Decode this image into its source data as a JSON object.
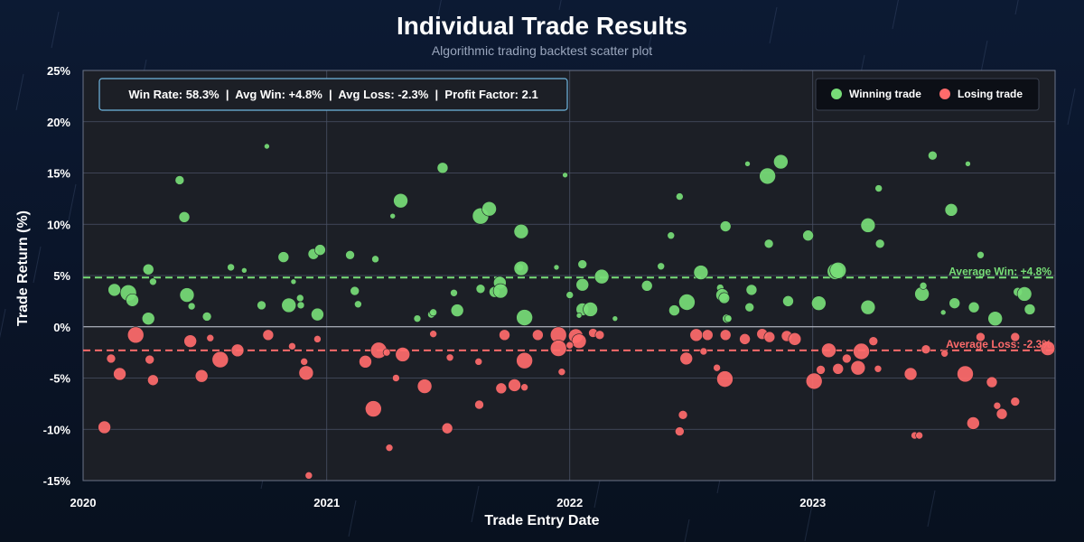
{
  "colors": {
    "win": "#77dd77",
    "loss": "#ff6b6b",
    "plot_bg": "#1c1f26",
    "grid": "#4a5266",
    "stats_border": "#6fb6e0"
  },
  "chart_data": {
    "type": "scatter",
    "title": "Individual Trade Results",
    "subtitle": "Algorithmic trading backtest scatter plot",
    "xlabel": "Trade Entry Date",
    "ylabel": "Trade Return (%)",
    "xlim": [
      "2020-01-01",
      "2023-12-31"
    ],
    "ylim": [
      -15,
      25
    ],
    "x_ticks": [
      "2020",
      "2021",
      "2022",
      "2023"
    ],
    "y_ticks": [
      "25%",
      "20%",
      "15%",
      "10%",
      "5%",
      "0%",
      "-5%",
      "-10%",
      "-15%"
    ],
    "grid": true,
    "legend": {
      "placement": "top-right",
      "entries": [
        "Winning trade",
        "Losing trade"
      ]
    },
    "stats_box": "Win Rate: 58.3%  |  Avg Win: +4.8%  |  Avg Loss: -2.3%  |  Profit Factor: 2.1",
    "avg_win": {
      "value": 4.8,
      "label": "Average Win: +4.8%"
    },
    "avg_loss": {
      "value": -2.3,
      "label": "Average Loss: -2.3%"
    },
    "series": [
      {
        "name": "Winning trade",
        "points": [
          {
            "x": "2020-02-17",
            "y": 3.6,
            "s": 7
          },
          {
            "x": "2020-03-09",
            "y": 3.3,
            "s": 9
          },
          {
            "x": "2020-03-15",
            "y": 2.6,
            "s": 7
          },
          {
            "x": "2020-04-08",
            "y": 5.6,
            "s": 6
          },
          {
            "x": "2020-04-08",
            "y": 0.8,
            "s": 7
          },
          {
            "x": "2020-04-15",
            "y": 4.4,
            "s": 4
          },
          {
            "x": "2020-05-25",
            "y": 14.3,
            "s": 5
          },
          {
            "x": "2020-06-01",
            "y": 10.7,
            "s": 6
          },
          {
            "x": "2020-06-05",
            "y": 3.1,
            "s": 8
          },
          {
            "x": "2020-06-12",
            "y": 2.0,
            "s": 4
          },
          {
            "x": "2020-07-05",
            "y": 1.0,
            "s": 5
          },
          {
            "x": "2020-08-10",
            "y": 5.8,
            "s": 4
          },
          {
            "x": "2020-08-30",
            "y": 5.5,
            "s": 3
          },
          {
            "x": "2020-09-25",
            "y": 2.1,
            "s": 5
          },
          {
            "x": "2020-10-03",
            "y": 17.6,
            "s": 3
          },
          {
            "x": "2020-10-28",
            "y": 6.8,
            "s": 6
          },
          {
            "x": "2020-11-05",
            "y": 2.1,
            "s": 8
          },
          {
            "x": "2020-11-12",
            "y": 4.4,
            "s": 3
          },
          {
            "x": "2020-11-22",
            "y": 2.8,
            "s": 4
          },
          {
            "x": "2020-11-23",
            "y": 2.1,
            "s": 4
          },
          {
            "x": "2020-12-12",
            "y": 7.1,
            "s": 6
          },
          {
            "x": "2020-12-22",
            "y": 7.5,
            "s": 6
          },
          {
            "x": "2020-12-18",
            "y": 1.2,
            "s": 7
          },
          {
            "x": "2021-02-05",
            "y": 7.0,
            "s": 5
          },
          {
            "x": "2021-02-12",
            "y": 3.5,
            "s": 5
          },
          {
            "x": "2021-02-17",
            "y": 2.2,
            "s": 4
          },
          {
            "x": "2021-03-15",
            "y": 6.6,
            "s": 4
          },
          {
            "x": "2021-04-10",
            "y": 10.8,
            "s": 3
          },
          {
            "x": "2021-04-22",
            "y": 12.3,
            "s": 8
          },
          {
            "x": "2021-05-17",
            "y": 0.8,
            "s": 4
          },
          {
            "x": "2021-06-07",
            "y": 1.2,
            "s": 4
          },
          {
            "x": "2021-06-10",
            "y": 1.4,
            "s": 4
          },
          {
            "x": "2021-06-24",
            "y": 15.5,
            "s": 6
          },
          {
            "x": "2021-07-11",
            "y": 3.3,
            "s": 4
          },
          {
            "x": "2021-07-16",
            "y": 1.6,
            "s": 7
          },
          {
            "x": "2021-08-20",
            "y": 3.7,
            "s": 5
          },
          {
            "x": "2021-08-20",
            "y": 10.8,
            "s": 9
          },
          {
            "x": "2021-09-02",
            "y": 11.5,
            "s": 8
          },
          {
            "x": "2021-09-10",
            "y": 3.4,
            "s": 6
          },
          {
            "x": "2021-09-18",
            "y": 4.3,
            "s": 7
          },
          {
            "x": "2021-09-19",
            "y": 3.5,
            "s": 8
          },
          {
            "x": "2021-10-18",
            "y": 5.8,
            "s": 4
          },
          {
            "x": "2021-10-20",
            "y": 5.7,
            "s": 8
          },
          {
            "x": "2021-10-20",
            "y": 9.3,
            "s": 8
          },
          {
            "x": "2021-10-25",
            "y": 0.9,
            "s": 9
          },
          {
            "x": "2021-12-12",
            "y": 5.8,
            "s": 3
          },
          {
            "x": "2021-12-25",
            "y": 14.8,
            "s": 3
          },
          {
            "x": "2022-01-01",
            "y": 3.1,
            "s": 4
          },
          {
            "x": "2022-01-20",
            "y": 6.1,
            "s": 5
          },
          {
            "x": "2022-01-20",
            "y": 1.7,
            "s": 7
          },
          {
            "x": "2022-01-20",
            "y": 4.1,
            "s": 7
          },
          {
            "x": "2022-01-15",
            "y": 1.1,
            "s": 3
          },
          {
            "x": "2022-02-01",
            "y": 1.7,
            "s": 8
          },
          {
            "x": "2022-02-18",
            "y": 4.9,
            "s": 8
          },
          {
            "x": "2022-03-10",
            "y": 0.8,
            "s": 3
          },
          {
            "x": "2022-04-27",
            "y": 4.0,
            "s": 6
          },
          {
            "x": "2022-05-18",
            "y": 5.9,
            "s": 4
          },
          {
            "x": "2022-06-02",
            "y": 8.9,
            "s": 4
          },
          {
            "x": "2022-06-07",
            "y": 1.6,
            "s": 6
          },
          {
            "x": "2022-06-15",
            "y": 12.7,
            "s": 4
          },
          {
            "x": "2022-06-26",
            "y": 2.4,
            "s": 9
          },
          {
            "x": "2022-07-17",
            "y": 5.3,
            "s": 8
          },
          {
            "x": "2022-08-15",
            "y": 3.8,
            "s": 4
          },
          {
            "x": "2022-08-18",
            "y": 3.1,
            "s": 7
          },
          {
            "x": "2022-08-21",
            "y": 2.8,
            "s": 6
          },
          {
            "x": "2022-08-23",
            "y": 9.8,
            "s": 6
          },
          {
            "x": "2022-08-25",
            "y": 0.8,
            "s": 5
          },
          {
            "x": "2022-08-27",
            "y": 0.8,
            "s": 4
          },
          {
            "x": "2022-09-25",
            "y": 15.9,
            "s": 3
          },
          {
            "x": "2022-10-01",
            "y": 3.6,
            "s": 6
          },
          {
            "x": "2022-09-28",
            "y": 1.9,
            "s": 5
          },
          {
            "x": "2022-10-25",
            "y": 14.7,
            "s": 9
          },
          {
            "x": "2022-10-27",
            "y": 8.1,
            "s": 5
          },
          {
            "x": "2022-11-14",
            "y": 16.1,
            "s": 8
          },
          {
            "x": "2022-11-25",
            "y": 2.5,
            "s": 6
          },
          {
            "x": "2022-12-25",
            "y": 8.9,
            "s": 6
          },
          {
            "x": "2023-01-10",
            "y": 2.3,
            "s": 8
          },
          {
            "x": "2023-02-04",
            "y": 5.4,
            "s": 9
          },
          {
            "x": "2023-02-08",
            "y": 5.5,
            "s": 9
          },
          {
            "x": "2023-03-25",
            "y": 9.9,
            "s": 8
          },
          {
            "x": "2023-03-25",
            "y": 1.9,
            "s": 8
          },
          {
            "x": "2023-04-10",
            "y": 13.5,
            "s": 4
          },
          {
            "x": "2023-04-12",
            "y": 8.1,
            "s": 5
          },
          {
            "x": "2023-06-14",
            "y": 3.2,
            "s": 8
          },
          {
            "x": "2023-06-16",
            "y": 4.0,
            "s": 4
          },
          {
            "x": "2023-06-30",
            "y": 16.7,
            "s": 5
          },
          {
            "x": "2023-07-16",
            "y": 1.4,
            "s": 3
          },
          {
            "x": "2023-07-28",
            "y": 11.4,
            "s": 7
          },
          {
            "x": "2023-08-02",
            "y": 2.3,
            "s": 6
          },
          {
            "x": "2023-08-22",
            "y": 15.9,
            "s": 3
          },
          {
            "x": "2023-08-31",
            "y": 1.9,
            "s": 6
          },
          {
            "x": "2023-09-10",
            "y": 7.0,
            "s": 4
          },
          {
            "x": "2023-10-02",
            "y": 0.8,
            "s": 8
          },
          {
            "x": "2023-11-05",
            "y": 3.4,
            "s": 5
          },
          {
            "x": "2023-11-15",
            "y": 3.2,
            "s": 8
          },
          {
            "x": "2023-11-23",
            "y": 1.7,
            "s": 6
          }
        ]
      },
      {
        "name": "Losing trade",
        "points": [
          {
            "x": "2020-02-02",
            "y": -9.8,
            "s": 7
          },
          {
            "x": "2020-02-12",
            "y": -3.1,
            "s": 5
          },
          {
            "x": "2020-02-25",
            "y": -4.6,
            "s": 7
          },
          {
            "x": "2020-03-20",
            "y": -0.8,
            "s": 9
          },
          {
            "x": "2020-04-10",
            "y": -3.2,
            "s": 5
          },
          {
            "x": "2020-04-15",
            "y": -5.2,
            "s": 6
          },
          {
            "x": "2020-06-10",
            "y": -1.4,
            "s": 7
          },
          {
            "x": "2020-06-27",
            "y": -4.8,
            "s": 7
          },
          {
            "x": "2020-07-10",
            "y": -1.1,
            "s": 4
          },
          {
            "x": "2020-07-25",
            "y": -3.2,
            "s": 9
          },
          {
            "x": "2020-08-20",
            "y": -2.3,
            "s": 7
          },
          {
            "x": "2020-10-05",
            "y": -0.8,
            "s": 6
          },
          {
            "x": "2020-11-10",
            "y": -1.9,
            "s": 4
          },
          {
            "x": "2020-11-28",
            "y": -3.4,
            "s": 4
          },
          {
            "x": "2020-12-01",
            "y": -4.5,
            "s": 8
          },
          {
            "x": "2020-12-05",
            "y": -14.5,
            "s": 4
          },
          {
            "x": "2020-12-18",
            "y": -1.2,
            "s": 4
          },
          {
            "x": "2021-02-28",
            "y": -3.4,
            "s": 7
          },
          {
            "x": "2021-03-12",
            "y": -8.0,
            "s": 9
          },
          {
            "x": "2021-03-20",
            "y": -2.3,
            "s": 9
          },
          {
            "x": "2021-04-05",
            "y": -11.8,
            "s": 4
          },
          {
            "x": "2021-04-01",
            "y": -2.5,
            "s": 4
          },
          {
            "x": "2021-04-15",
            "y": -5.0,
            "s": 4
          },
          {
            "x": "2021-04-25",
            "y": -2.7,
            "s": 8
          },
          {
            "x": "2021-05-28",
            "y": -5.8,
            "s": 8
          },
          {
            "x": "2021-06-10",
            "y": -0.7,
            "s": 4
          },
          {
            "x": "2021-07-01",
            "y": -9.9,
            "s": 6
          },
          {
            "x": "2021-07-05",
            "y": -3.0,
            "s": 4
          },
          {
            "x": "2021-08-17",
            "y": -3.4,
            "s": 4
          },
          {
            "x": "2021-08-18",
            "y": -7.6,
            "s": 5
          },
          {
            "x": "2021-09-20",
            "y": -6.0,
            "s": 6
          },
          {
            "x": "2021-09-25",
            "y": -0.8,
            "s": 6
          },
          {
            "x": "2021-10-10",
            "y": -5.7,
            "s": 7
          },
          {
            "x": "2021-10-25",
            "y": -3.3,
            "s": 9
          },
          {
            "x": "2021-10-25",
            "y": -5.9,
            "s": 4
          },
          {
            "x": "2021-11-14",
            "y": -0.8,
            "s": 6
          },
          {
            "x": "2021-12-15",
            "y": -0.8,
            "s": 9
          },
          {
            "x": "2021-12-15",
            "y": -2.1,
            "s": 9
          },
          {
            "x": "2021-12-20",
            "y": -4.4,
            "s": 4
          },
          {
            "x": "2022-01-10",
            "y": -0.9,
            "s": 8
          },
          {
            "x": "2022-01-15",
            "y": -1.4,
            "s": 8
          },
          {
            "x": "2022-01-01",
            "y": -1.8,
            "s": 4
          },
          {
            "x": "2022-02-05",
            "y": -0.6,
            "s": 5
          },
          {
            "x": "2022-02-15",
            "y": -0.8,
            "s": 5
          },
          {
            "x": "2022-06-15",
            "y": -10.2,
            "s": 5
          },
          {
            "x": "2022-06-20",
            "y": -8.6,
            "s": 5
          },
          {
            "x": "2022-06-25",
            "y": -3.1,
            "s": 7
          },
          {
            "x": "2022-07-10",
            "y": -0.8,
            "s": 7
          },
          {
            "x": "2022-07-21",
            "y": -2.4,
            "s": 4
          },
          {
            "x": "2022-07-27",
            "y": -0.8,
            "s": 6
          },
          {
            "x": "2022-08-10",
            "y": -4.0,
            "s": 4
          },
          {
            "x": "2022-08-22",
            "y": -5.1,
            "s": 9
          },
          {
            "x": "2022-08-23",
            "y": -0.8,
            "s": 6
          },
          {
            "x": "2022-09-21",
            "y": -1.2,
            "s": 6
          },
          {
            "x": "2022-10-17",
            "y": -0.7,
            "s": 6
          },
          {
            "x": "2022-10-28",
            "y": -1.0,
            "s": 6
          },
          {
            "x": "2022-11-23",
            "y": -0.9,
            "s": 6
          },
          {
            "x": "2022-12-05",
            "y": -1.2,
            "s": 7
          },
          {
            "x": "2023-01-03",
            "y": -5.3,
            "s": 9
          },
          {
            "x": "2023-01-13",
            "y": -4.2,
            "s": 5
          },
          {
            "x": "2023-01-25",
            "y": -2.3,
            "s": 8
          },
          {
            "x": "2023-02-08",
            "y": -4.1,
            "s": 6
          },
          {
            "x": "2023-02-21",
            "y": -3.1,
            "s": 5
          },
          {
            "x": "2023-03-10",
            "y": -4.0,
            "s": 8
          },
          {
            "x": "2023-03-15",
            "y": -2.4,
            "s": 9
          },
          {
            "x": "2023-04-02",
            "y": -1.4,
            "s": 5
          },
          {
            "x": "2023-04-09",
            "y": -4.1,
            "s": 4
          },
          {
            "x": "2023-05-28",
            "y": -4.6,
            "s": 7
          },
          {
            "x": "2023-06-03",
            "y": -10.6,
            "s": 4
          },
          {
            "x": "2023-06-10",
            "y": -10.6,
            "s": 4
          },
          {
            "x": "2023-06-20",
            "y": -2.2,
            "s": 5
          },
          {
            "x": "2023-07-18",
            "y": -2.6,
            "s": 4
          },
          {
            "x": "2023-08-18",
            "y": -4.6,
            "s": 9
          },
          {
            "x": "2023-08-30",
            "y": -9.4,
            "s": 7
          },
          {
            "x": "2023-09-10",
            "y": -1.0,
            "s": 5
          },
          {
            "x": "2023-09-27",
            "y": -5.4,
            "s": 6
          },
          {
            "x": "2023-10-05",
            "y": -7.7,
            "s": 4
          },
          {
            "x": "2023-10-12",
            "y": -8.5,
            "s": 6
          },
          {
            "x": "2023-11-01",
            "y": -7.3,
            "s": 5
          },
          {
            "x": "2023-11-01",
            "y": -1.0,
            "s": 5
          },
          {
            "x": "2023-12-20",
            "y": -2.1,
            "s": 8
          }
        ]
      }
    ]
  }
}
